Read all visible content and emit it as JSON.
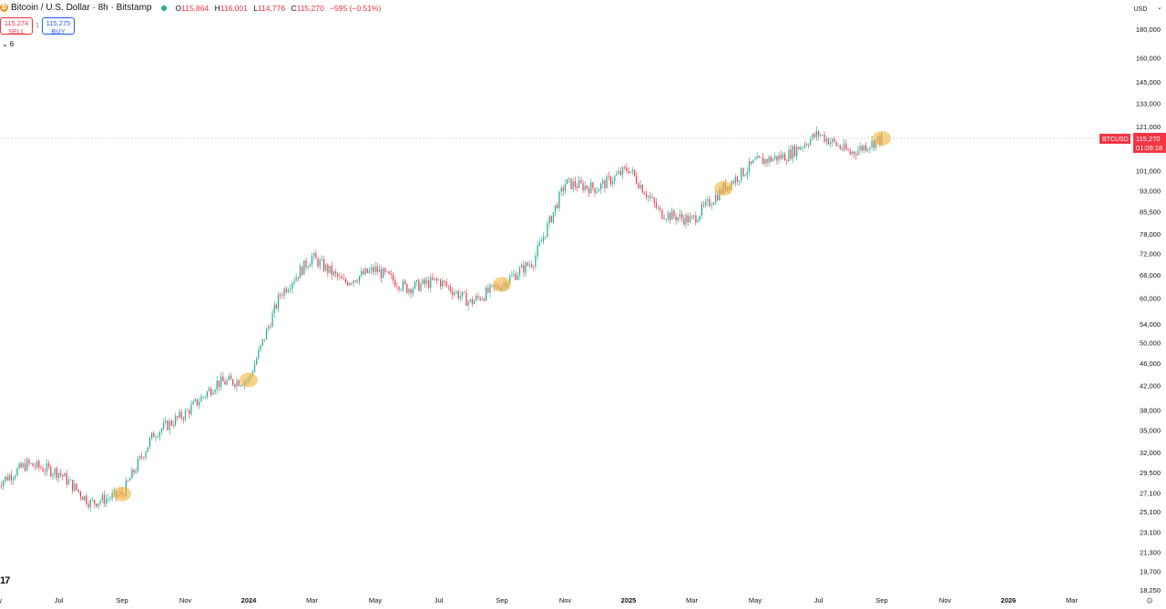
{
  "header": {
    "symbol_title": "Bitcoin / U.S. Dollar · 8h · Bitstamp",
    "ohlc": [
      {
        "key": "O",
        "value": "115,864"
      },
      {
        "key": "H",
        "value": "116,001"
      },
      {
        "key": "L",
        "value": "114,776"
      },
      {
        "key": "C",
        "value": "115,270"
      },
      {
        "key": "",
        "value": "−595 (−0.51%)"
      }
    ]
  },
  "trade": {
    "sell_price": "115,274",
    "sell_label": "SELL",
    "spread": "1",
    "buy_price": "115,275",
    "buy_label": "BUY"
  },
  "indicators_toggle": {
    "count": "6"
  },
  "currency": "USD",
  "price_label": {
    "symbol": "BTCUSD",
    "price": "115,270",
    "countdown": "01:09:18"
  },
  "colors": {
    "up": "#22ab94",
    "down": "#f23645",
    "highlight": "#f5b43a",
    "sell": "#f23645",
    "buy": "#2962ff",
    "price_tag": "#f23645"
  },
  "chart_data": {
    "type": "candlestick",
    "scale": "log",
    "ylim": [
      18250,
      220000
    ],
    "y_ticks": [
      "180,000",
      "160,000",
      "145,000",
      "133,000",
      "121,000",
      "110,000",
      "101,000",
      "93,000",
      "85,500",
      "78,000",
      "72,000",
      "66,000",
      "60,000",
      "54,000",
      "50,000",
      "46,000",
      "42,000",
      "38,000",
      "35,000",
      "32,000",
      "29,500",
      "27,100",
      "25,100",
      "23,100",
      "21,300",
      "19,700",
      "18,250"
    ],
    "x_ticks": [
      "May",
      "Jul",
      "Sep",
      "Nov",
      "2024",
      "Mar",
      "May",
      "Jul",
      "Sep",
      "Nov",
      "2025",
      "Mar",
      "May",
      "Jul",
      "Sep",
      "Nov",
      "2026",
      "Mar"
    ],
    "x": [
      "2023-05",
      "2023-06",
      "2023-07",
      "2023-08",
      "2023-09",
      "2023-10",
      "2023-11",
      "2023-12",
      "2024-01",
      "2024-02",
      "2024-03",
      "2024-04",
      "2024-05",
      "2024-06",
      "2024-07",
      "2024-08",
      "2024-09",
      "2024-10",
      "2024-11",
      "2024-12",
      "2025-01",
      "2025-02",
      "2025-03",
      "2025-04",
      "2025-05",
      "2025-06",
      "2025-07",
      "2025-08",
      "2025-09"
    ],
    "close": [
      28000,
      30500,
      29500,
      26000,
      27000,
      34500,
      37500,
      42500,
      43000,
      61000,
      71000,
      64000,
      67500,
      62500,
      64500,
      59000,
      63500,
      70000,
      96000,
      94000,
      102000,
      85000,
      82500,
      94000,
      104500,
      107500,
      117500,
      108500,
      115270
    ],
    "highlights": [
      "2023-09",
      "2024-01",
      "2024-09",
      "2025-04",
      "2025-09"
    ],
    "last_price": 115270
  }
}
